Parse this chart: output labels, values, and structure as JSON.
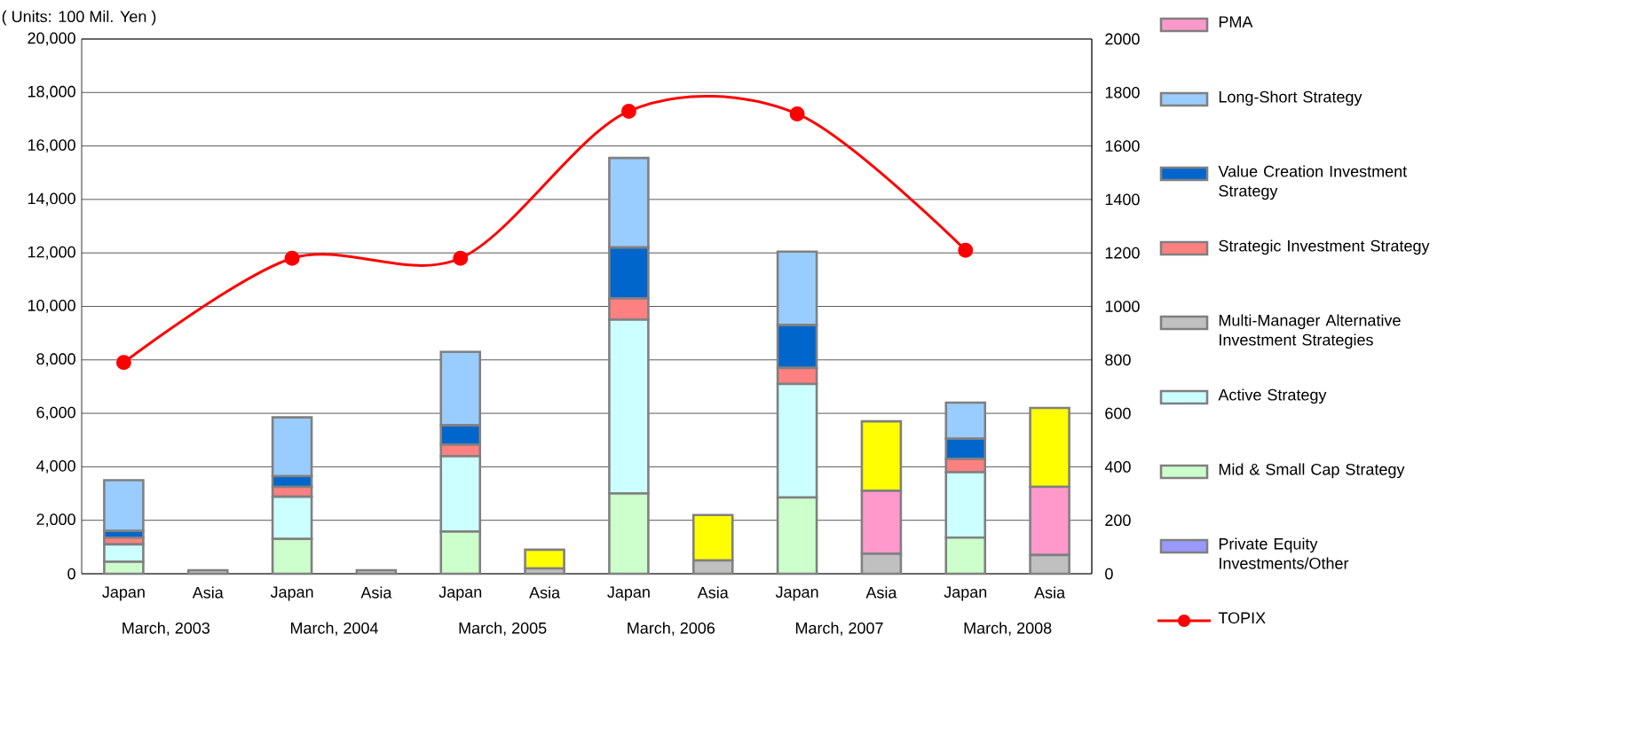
{
  "chart_data": {
    "type": "bar",
    "stacked": true,
    "ylabel": "( Units: 100 Mil. Yen )",
    "categories": [
      "Japan",
      "Asia",
      "Japan",
      "Asia",
      "Japan",
      "Asia",
      "Japan",
      "Asia",
      "Japan",
      "Asia",
      "Japan",
      "Asia"
    ],
    "annotations": [
      "March, 2003",
      "March, 2004",
      "March, 2005",
      "March, 2006",
      "March, 2007",
      "March, 2008"
    ],
    "series": [
      {
        "name": "Private Equity Investments/Other",
        "color": "#9999ff",
        "values": [
          0,
          0,
          0,
          0,
          0,
          0,
          0,
          0,
          0,
          0,
          0,
          0
        ]
      },
      {
        "name": "Mid & Small Cap Strategy",
        "color": "#ccffcc",
        "values": [
          450,
          0,
          1300,
          0,
          1580,
          0,
          3000,
          0,
          2850,
          0,
          1350,
          0
        ]
      },
      {
        "name": "Active Strategy",
        "color": "#ccffff",
        "values": [
          650,
          0,
          1580,
          0,
          2820,
          0,
          6500,
          0,
          4250,
          0,
          2450,
          0
        ]
      },
      {
        "name": "Multi-Manager Alternative Investment Strategies",
        "color": "#c0c0c0",
        "values": [
          0,
          130,
          0,
          130,
          0,
          200,
          0,
          500,
          0,
          750,
          0,
          700
        ]
      },
      {
        "name": "Strategic Investment Strategy",
        "color": "#ff8080",
        "values": [
          250,
          0,
          370,
          0,
          430,
          0,
          800,
          0,
          600,
          0,
          500,
          0
        ]
      },
      {
        "name": "Value Creation Investment Strategy",
        "color": "#0066cc",
        "values": [
          250,
          0,
          400,
          0,
          720,
          0,
          1900,
          0,
          1600,
          0,
          750,
          0
        ]
      },
      {
        "name": "Long-Short Strategy",
        "color": "#99ccff",
        "values": [
          1900,
          0,
          2200,
          0,
          2750,
          0,
          3350,
          0,
          2750,
          0,
          1350,
          0
        ]
      },
      {
        "name": "PMA",
        "color": "#ff99cc",
        "values": [
          0,
          0,
          0,
          0,
          0,
          0,
          0,
          0,
          0,
          2350,
          0,
          2550
        ]
      },
      {
        "color": "#ffff00",
        "values": [
          0,
          0,
          0,
          0,
          0,
          700,
          0,
          1700,
          0,
          2600,
          0,
          2950
        ]
      },
      {
        "name": "TOPIX",
        "type": "line",
        "axis": "y2",
        "color": "#ff0000",
        "values": [
          790,
          null,
          1180,
          null,
          1180,
          null,
          1730,
          null,
          1720,
          null,
          1210,
          null
        ]
      }
    ],
    "ylim": [
      0,
      20000
    ],
    "yticks": [
      {
        "value": 0,
        "label": "0"
      },
      {
        "value": 2000,
        "label": "2,000"
      },
      {
        "value": 4000,
        "label": "4,000"
      },
      {
        "value": 6000,
        "label": "6,000"
      },
      {
        "value": 8000,
        "label": "8,000"
      },
      {
        "value": 10000,
        "label": "10,000"
      },
      {
        "value": 12000,
        "label": "12,000"
      },
      {
        "value": 14000,
        "label": "14,000"
      },
      {
        "value": 16000,
        "label": "16,000"
      },
      {
        "value": 18000,
        "label": "18,000"
      },
      {
        "value": 20000,
        "label": "20,000"
      }
    ],
    "y2lim": [
      0,
      2000
    ],
    "y2ticks": [
      0,
      200,
      400,
      600,
      800,
      1000,
      1200,
      1400,
      1600,
      1800,
      2000
    ],
    "grid": "y",
    "legend": "right",
    "marker": "circle",
    "line_style": "solid"
  }
}
